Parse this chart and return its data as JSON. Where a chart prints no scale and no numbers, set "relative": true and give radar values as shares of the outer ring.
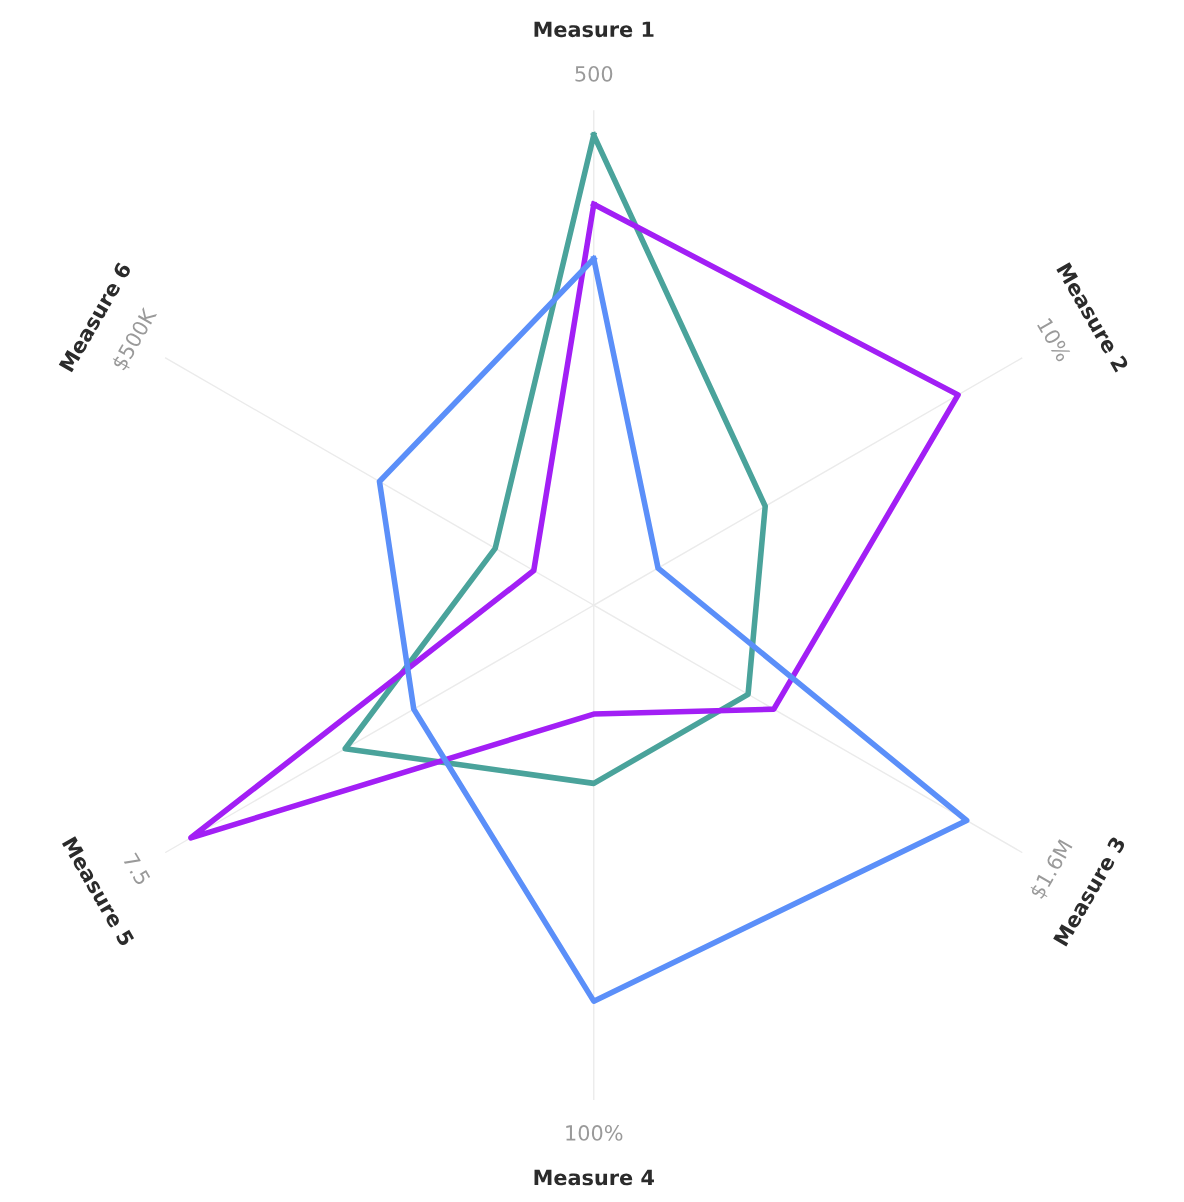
{
  "chart_data": {
    "type": "radar",
    "relative": true,
    "grid": "x",
    "categories": [
      "Measure 1",
      "Measure 2",
      "Measure 3",
      "Measure 4",
      "Measure 5",
      "Measure 6"
    ],
    "annotations": [
      "500",
      "10%",
      "$1.6M",
      "100%",
      "7.5",
      "$500K"
    ],
    "series": [
      {
        "color": "#4aa39b",
        "values": [
          0.95,
          0.4,
          0.36,
          0.36,
          0.58,
          0.23
        ]
      },
      {
        "color": "#a21ff5",
        "values": [
          0.81,
          0.85,
          0.42,
          0.22,
          0.94,
          0.14
        ]
      },
      {
        "color": "#5b8ff9",
        "values": [
          0.7,
          0.15,
          0.87,
          0.8,
          0.42,
          0.5
        ]
      }
    ]
  }
}
